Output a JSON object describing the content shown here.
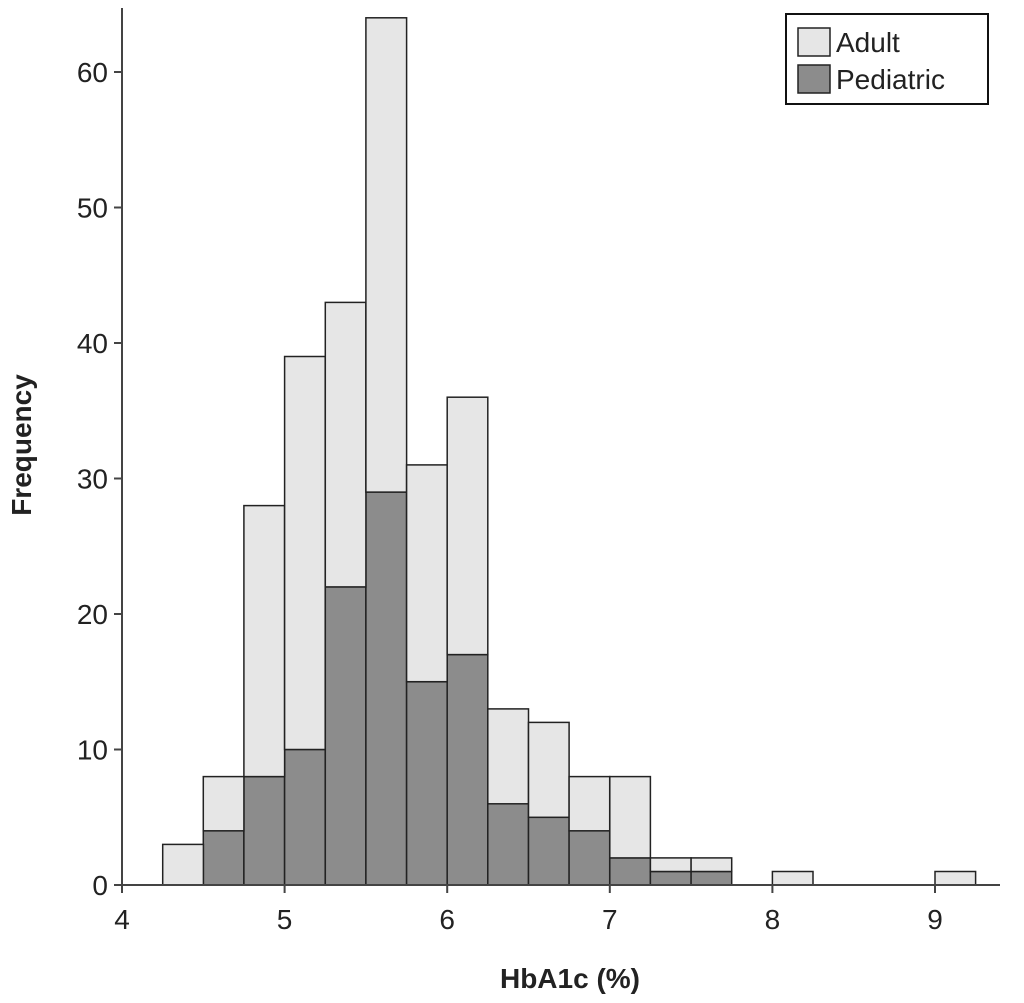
{
  "chart_data": {
    "type": "bar",
    "stacked": true,
    "title": "",
    "xlabel": "HbA1c (%)",
    "ylabel": "Frequency",
    "xlim": [
      4,
      9.4
    ],
    "ylim": [
      0,
      66
    ],
    "x_ticks": [
      4,
      5,
      6,
      7,
      8,
      9
    ],
    "y_ticks": [
      0,
      10,
      20,
      30,
      40,
      50,
      60
    ],
    "bin_width": 0.25,
    "bin_starts": [
      4.25,
      4.5,
      4.75,
      5.0,
      5.25,
      5.5,
      5.75,
      6.0,
      6.25,
      6.5,
      6.75,
      7.0,
      7.25,
      7.5,
      7.75,
      8.0,
      8.25,
      8.5,
      8.75,
      9.0
    ],
    "series": [
      {
        "name": "Pediatric",
        "color": "#8c8c8c",
        "values": [
          0,
          4,
          8,
          10,
          22,
          29,
          15,
          17,
          6,
          5,
          4,
          2,
          1,
          1,
          0,
          0,
          0,
          0,
          0,
          0
        ]
      },
      {
        "name": "Adult",
        "color": "#e6e6e6",
        "values": [
          3,
          4,
          20,
          29,
          21,
          35,
          16,
          19,
          7,
          7,
          4,
          6,
          1,
          1,
          0,
          1,
          0,
          0,
          0,
          1
        ]
      }
    ],
    "legend": {
      "position": "top-right",
      "entries": [
        "Adult",
        "Pediatric"
      ]
    },
    "grid": false
  }
}
